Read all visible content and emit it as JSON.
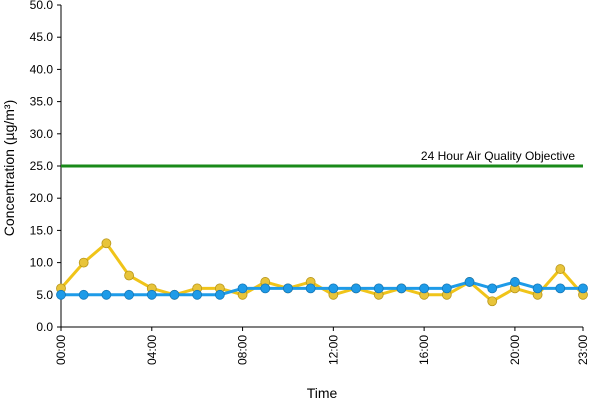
{
  "chart_data": {
    "type": "line",
    "title": "",
    "xlabel": "Time",
    "ylabel": "Concentration (µg/m³)",
    "ylim": [
      0,
      50
    ],
    "y_ticks": [
      "0.0",
      "5.0",
      "10.0",
      "15.0",
      "20.0",
      "25.0",
      "30.0",
      "35.0",
      "40.0",
      "45.0",
      "50.0"
    ],
    "x_ticks": [
      "00:00",
      "04:00",
      "08:00",
      "12:00",
      "16:00",
      "20:00",
      "23:00"
    ],
    "x_tick_hours": [
      0,
      4,
      8,
      12,
      16,
      20,
      23
    ],
    "grid": false,
    "x": [
      0,
      1,
      2,
      3,
      4,
      5,
      6,
      7,
      8,
      9,
      10,
      11,
      12,
      13,
      14,
      15,
      16,
      17,
      18,
      19,
      20,
      21,
      22,
      23
    ],
    "series": [
      {
        "color": "#f0c419",
        "marker_color": "#e8c43a",
        "values": [
          6,
          10,
          13,
          8,
          6,
          5,
          6,
          6,
          5,
          7,
          6,
          7,
          5,
          6,
          5,
          6,
          5,
          5,
          7,
          4,
          6,
          5,
          9,
          5
        ]
      },
      {
        "color": "#1e9be8",
        "marker_color": "#1e9be8",
        "values": [
          5,
          5,
          5,
          5,
          5,
          5,
          5,
          5,
          6,
          6,
          6,
          6,
          6,
          6,
          6,
          6,
          6,
          6,
          7,
          6,
          7,
          6,
          6,
          6
        ]
      }
    ],
    "reference_line": {
      "value": 25,
      "label": "24 Hour Air Quality Objective",
      "color": "#1a8a1a"
    }
  }
}
